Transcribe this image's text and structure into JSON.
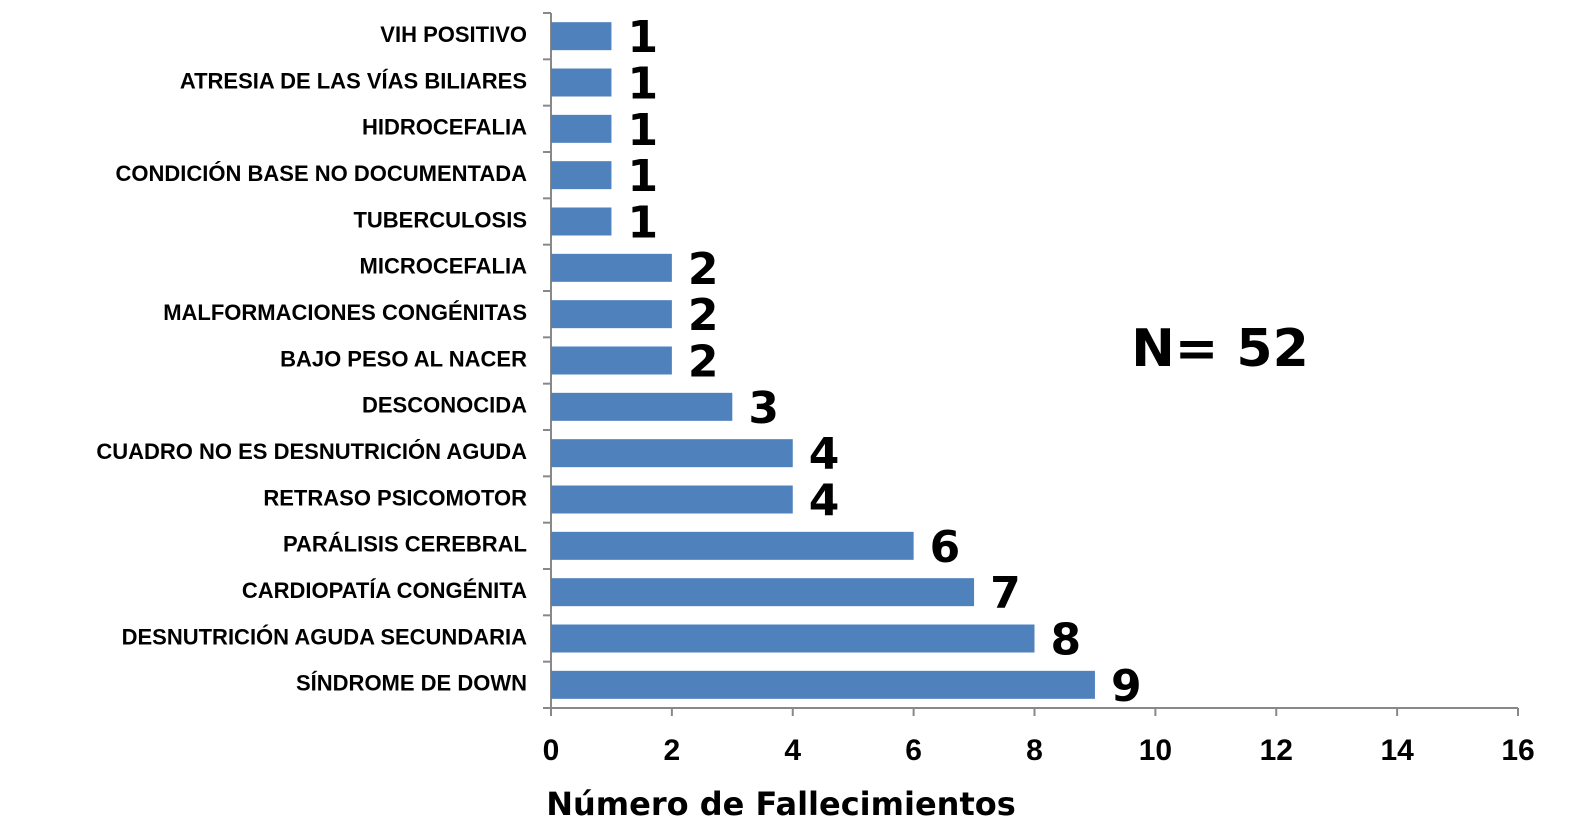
{
  "chart_data": {
    "type": "bar",
    "orientation": "horizontal",
    "categories": [
      "VIH POSITIVO",
      "ATRESIA DE LAS VÍAS BILIARES",
      "HIDROCEFALIA",
      "CONDICIÓN BASE NO DOCUMENTADA",
      "TUBERCULOSIS",
      "MICROCEFALIA",
      "MALFORMACIONES CONGÉNITAS",
      "BAJO PESO AL NACER",
      "DESCONOCIDA",
      "CUADRO NO ES DESNUTRICIÓN AGUDA",
      "RETRASO PSICOMOTOR",
      "PARÁLISIS CEREBRAL",
      "CARDIOPATÍA CONGÉNITA",
      "DESNUTRICIÓN AGUDA SECUNDARIA",
      "SÍNDROME DE DOWN"
    ],
    "values": [
      1,
      1,
      1,
      1,
      1,
      2,
      2,
      2,
      3,
      4,
      4,
      6,
      7,
      8,
      9
    ],
    "color": "#4f81bd",
    "xlabel": "Número de Fallecimientos",
    "annotation": "N= 52",
    "xlim": [
      0,
      16
    ],
    "xticks": [
      0,
      2,
      4,
      6,
      8,
      10,
      12,
      14,
      16
    ],
    "grid": false
  }
}
